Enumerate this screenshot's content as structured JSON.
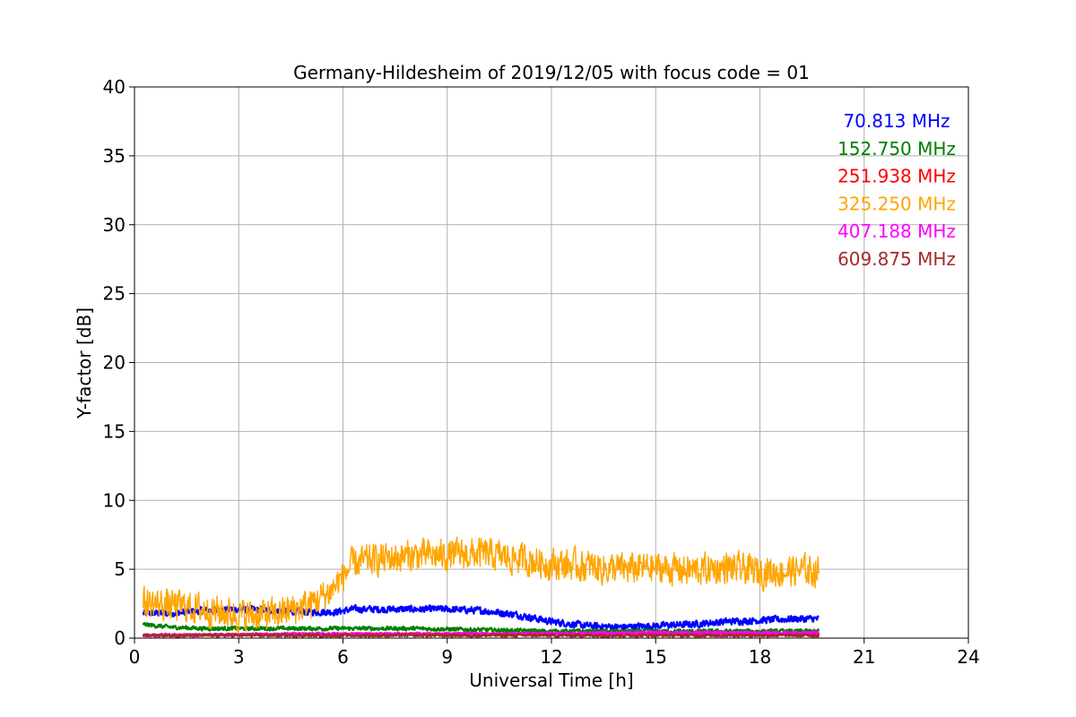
{
  "chart_data": {
    "type": "line",
    "title": "Germany-Hildesheim of 2019/12/05 with focus code = 01",
    "xlabel": "Universal Time [h]",
    "ylabel": "Y-factor [dB]",
    "xlim": [
      0,
      24
    ],
    "ylim": [
      0,
      40
    ],
    "xticks": [
      0,
      3,
      6,
      9,
      12,
      15,
      18,
      21,
      24
    ],
    "yticks": [
      0,
      5,
      10,
      15,
      20,
      25,
      30,
      35,
      40
    ],
    "xtick_labels": [
      "0",
      "3",
      "6",
      "9",
      "12",
      "15",
      "18",
      "21",
      "24"
    ],
    "ytick_labels": [
      "0",
      "5",
      "10",
      "15",
      "20",
      "25",
      "30",
      "35",
      "40"
    ],
    "grid": true,
    "legend_position": "top-right",
    "series": [
      {
        "name": "70.813 MHz",
        "color": "#0000ff",
        "noise": 0.35,
        "x": [
          0.25,
          1,
          2,
          3,
          4,
          5,
          5.8,
          6.3,
          7,
          8,
          9,
          10,
          11,
          12,
          13,
          14,
          15,
          16,
          17,
          18,
          19,
          19.7
        ],
        "values": [
          1.8,
          1.8,
          2.0,
          2.1,
          2.0,
          1.9,
          1.9,
          2.1,
          2.1,
          2.1,
          2.1,
          2.0,
          1.7,
          1.2,
          0.9,
          0.8,
          0.9,
          1.0,
          1.2,
          1.3,
          1.4,
          1.4
        ]
      },
      {
        "name": "152.750 MHz",
        "color": "#008000",
        "noise": 0.2,
        "x": [
          0.25,
          1,
          2,
          3,
          4,
          5,
          6,
          8,
          10,
          12,
          14,
          16,
          18,
          19.7
        ],
        "values": [
          1.0,
          0.8,
          0.7,
          0.7,
          0.7,
          0.7,
          0.7,
          0.7,
          0.6,
          0.5,
          0.5,
          0.5,
          0.5,
          0.5
        ]
      },
      {
        "name": "251.938 MHz",
        "color": "#ff0000",
        "noise": 0.1,
        "x": [
          0.25,
          5,
          10,
          15,
          19.7
        ],
        "values": [
          0.2,
          0.3,
          0.3,
          0.3,
          0.3
        ]
      },
      {
        "name": "325.250 MHz",
        "color": "#ffa500",
        "noise": 1.6,
        "x": [
          0.25,
          1,
          2,
          3,
          4,
          5,
          5.6,
          6.3,
          7,
          8,
          9,
          10,
          11,
          12,
          13,
          14,
          15,
          16,
          17,
          18,
          19,
          19.7
        ],
        "values": [
          2.6,
          2.4,
          2.1,
          1.7,
          1.7,
          2.4,
          3.3,
          5.4,
          5.7,
          6.0,
          6.0,
          6.1,
          5.8,
          5.4,
          5.2,
          5.0,
          5.1,
          4.9,
          5.1,
          4.8,
          4.9,
          4.9
        ]
      },
      {
        "name": "407.188 MHz",
        "color": "#ff00ff",
        "noise": 0.15,
        "x": [
          0.25,
          5,
          10,
          15,
          19.7
        ],
        "values": [
          0.2,
          0.3,
          0.3,
          0.4,
          0.4
        ]
      },
      {
        "name": "609.875 MHz",
        "color": "#a52a2a",
        "noise": 0.15,
        "x": [
          0.25,
          5,
          10,
          15,
          19.7
        ],
        "values": [
          0.2,
          0.2,
          0.2,
          0.2,
          0.2
        ]
      }
    ]
  }
}
